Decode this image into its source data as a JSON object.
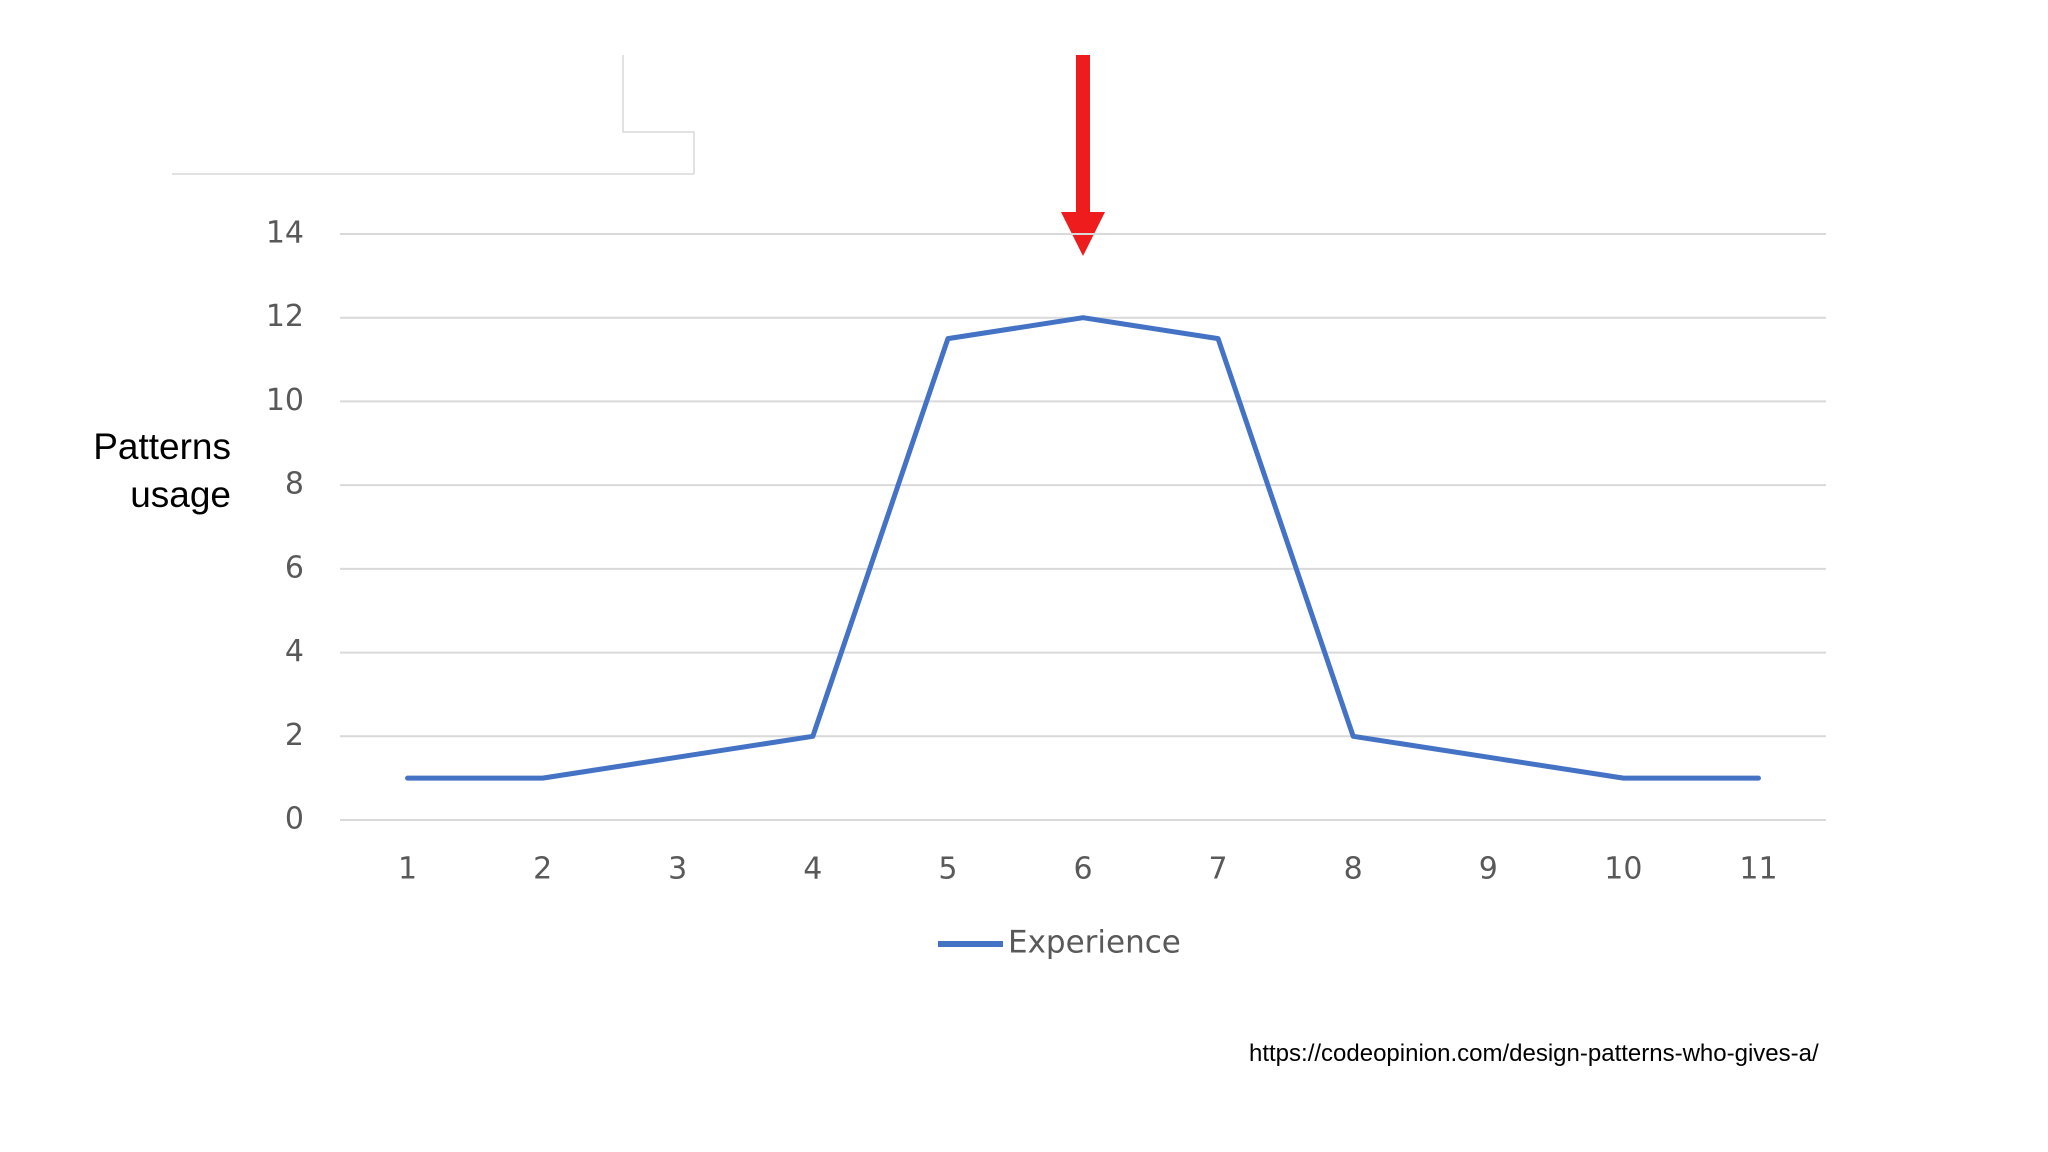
{
  "chart_data": {
    "type": "line",
    "ylabel": "Patterns usage",
    "categories": [
      "1",
      "2",
      "3",
      "4",
      "5",
      "6",
      "7",
      "8",
      "9",
      "10",
      "11"
    ],
    "series": [
      {
        "name": "Experience",
        "color": "#4472c4",
        "values": [
          1,
          1,
          1.5,
          2,
          11.5,
          12,
          11.5,
          2,
          1.5,
          1,
          1
        ]
      }
    ],
    "ylim": [
      0,
      14
    ],
    "yticks": [
      0,
      2,
      4,
      6,
      8,
      10,
      12,
      14
    ],
    "grid": true,
    "legend": "bottom",
    "annotation": "https://codeopinion.com/design-patterns-who-gives-a/"
  }
}
